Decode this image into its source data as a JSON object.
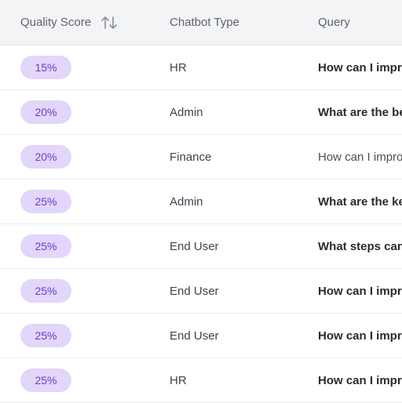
{
  "header": {
    "quality_score": "Quality Score",
    "chatbot_type": "Chatbot Type",
    "query": "Query"
  },
  "rows": [
    {
      "score": "15%",
      "type": "HR",
      "query": "How can I impro",
      "bold": true
    },
    {
      "score": "20%",
      "type": "Admin",
      "query": "What are the be",
      "bold": true
    },
    {
      "score": "20%",
      "type": "Finance",
      "query": "How can I impro",
      "bold": false
    },
    {
      "score": "25%",
      "type": "Admin",
      "query": "What are the ke",
      "bold": true
    },
    {
      "score": "25%",
      "type": "End User",
      "query": "What steps can",
      "bold": true
    },
    {
      "score": "25%",
      "type": "End User",
      "query": "How can I impro",
      "bold": true
    },
    {
      "score": "25%",
      "type": "End User",
      "query": "How can I impro",
      "bold": true
    },
    {
      "score": "25%",
      "type": "HR",
      "query": "How can I impro",
      "bold": true
    }
  ],
  "colors": {
    "badge_bg": "#e2d6fb",
    "badge_text": "#6a3ec4",
    "header_bg": "#f3f4f6"
  },
  "icons": {
    "sort": "sort-arrows-icon"
  }
}
